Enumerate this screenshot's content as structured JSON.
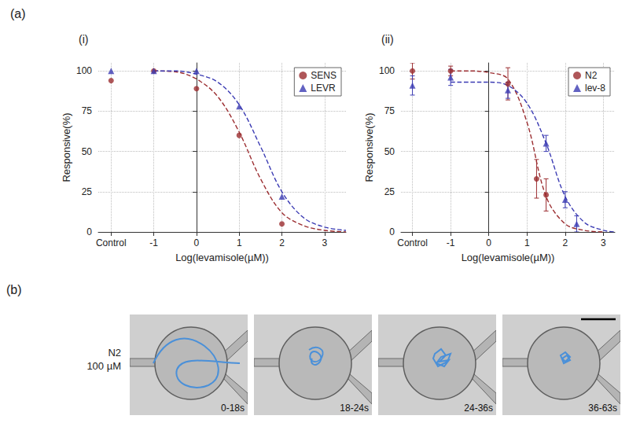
{
  "panel_labels": [
    "(a)",
    "(b)"
  ],
  "chart_data": [
    {
      "type": "scatter",
      "title": "(i)",
      "xlabel": "Log(levamisole(µM))",
      "ylabel": "Responsive(%)",
      "xlim": [
        -2.3,
        3.5
      ],
      "xticks": [
        {
          "value": -2,
          "label": "Control"
        },
        -1,
        0,
        1,
        2,
        3
      ],
      "ylim": [
        0,
        105
      ],
      "yticks": [
        0,
        25,
        50,
        75,
        100
      ],
      "grid": true,
      "legend": "upper right",
      "series": [
        {
          "name": "SENS",
          "color": "#9b2d30",
          "marker": "circle",
          "line_style": "dashed",
          "x": [
            -2,
            -1,
            0,
            1,
            2
          ],
          "values": [
            94,
            100,
            89,
            60,
            5
          ],
          "fit_x": [
            -1,
            -0.5,
            0,
            0.5,
            1,
            1.5,
            2,
            2.5,
            3,
            3.5
          ],
          "fit_values": [
            100,
            99.5,
            95,
            84,
            62,
            33,
            12,
            4,
            1,
            0
          ]
        },
        {
          "name": "LEVR",
          "color": "#3b3bb3",
          "marker": "triangle",
          "line_style": "dashed",
          "x": [
            -2,
            -1,
            0,
            1,
            2
          ],
          "values": [
            100,
            100,
            100,
            78,
            22
          ],
          "fit_x": [
            -1,
            -0.5,
            0,
            0.5,
            1,
            1.5,
            2,
            2.5,
            3,
            3.5
          ],
          "fit_values": [
            100,
            100,
            98,
            93,
            79,
            53,
            25,
            9,
            3,
            1
          ]
        }
      ]
    },
    {
      "type": "scatter",
      "title": "(ii)",
      "xlabel": "Log(levamisole(µM))",
      "ylabel": "Responsive(%)",
      "xlim": [
        -2.3,
        3.3
      ],
      "xticks": [
        {
          "value": -2,
          "label": "Control"
        },
        -1,
        0,
        1,
        2,
        3
      ],
      "ylim": [
        0,
        105
      ],
      "yticks": [
        0,
        25,
        50,
        75,
        100
      ],
      "grid": true,
      "legend": "upper right",
      "series": [
        {
          "name": "N2",
          "color": "#9b2d30",
          "marker": "circle",
          "line_style": "dashed",
          "x": [
            -2,
            -1,
            0.5,
            1.25,
            1.5
          ],
          "values": [
            100,
            100,
            92,
            33,
            23
          ],
          "errors": [
            5,
            3,
            10,
            12,
            10
          ],
          "fit_x": [
            -1,
            -0.5,
            0,
            0.5,
            1,
            1.5,
            2,
            2.5,
            3
          ],
          "fit_values": [
            100,
            100,
            99,
            95,
            68,
            22,
            5,
            1,
            0
          ]
        },
        {
          "name": "lev-8",
          "color": "#3b3bb3",
          "marker": "triangle",
          "line_style": "dashed",
          "x": [
            -2,
            -1,
            0.5,
            1.5,
            2,
            2.3
          ],
          "values": [
            91,
            96,
            88,
            55,
            20,
            5
          ],
          "errors": [
            6,
            5,
            5,
            5,
            5,
            5
          ],
          "fit_x": [
            -1,
            -0.5,
            0,
            0.5,
            1,
            1.5,
            2,
            2.5,
            3,
            3.3
          ],
          "fit_values": [
            93,
            93,
            93,
            91,
            80,
            55,
            22,
            6,
            1,
            0
          ]
        }
      ]
    }
  ],
  "image_panel": {
    "row_label": [
      "N2",
      "100 µM"
    ],
    "frames": [
      "0-18s",
      "18-24s",
      "24-36s",
      "36-63s"
    ]
  }
}
